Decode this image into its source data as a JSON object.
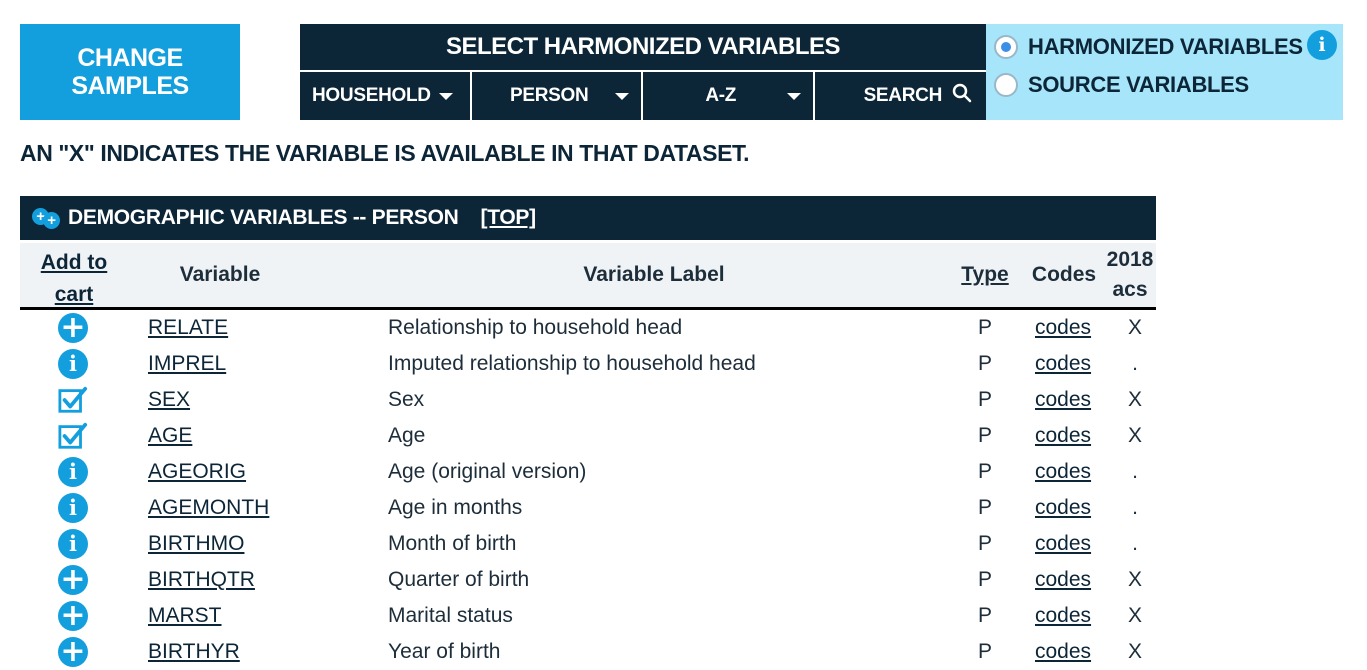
{
  "change_samples": {
    "line1": "CHANGE",
    "line2": "SAMPLES"
  },
  "select": {
    "title": "SELECT HARMONIZED VARIABLES",
    "tabs": [
      {
        "label": "HOUSEHOLD",
        "icon": "caret-down-icon"
      },
      {
        "label": "PERSON",
        "icon": "caret-down-icon"
      },
      {
        "label": "A-Z",
        "icon": "caret-down-icon"
      },
      {
        "label": "SEARCH",
        "icon": "search-icon"
      }
    ]
  },
  "mode": {
    "harmonized": "HARMONIZED VARIABLES",
    "source": "SOURCE VARIABLES",
    "selected": "harmonized",
    "info": "i"
  },
  "notice": "AN \"X\" INDICATES THE VARIABLE IS AVAILABLE IN THAT DATASET.",
  "group": {
    "title": "DEMOGRAPHIC VARIABLES -- PERSON",
    "top_link": "[TOP]"
  },
  "headers": {
    "add_line1": "Add to",
    "add_line2": "cart",
    "variable": "Variable",
    "label": "Variable Label",
    "type": "Type",
    "codes": "Codes",
    "sample_line1": "2018",
    "sample_line2": "acs"
  },
  "rows": [
    {
      "icon": "plus",
      "variable": "RELATE",
      "label": "Relationship to household head",
      "type": "P",
      "codes": "codes",
      "avail": "X"
    },
    {
      "icon": "info",
      "variable": "IMPREL",
      "label": "Imputed relationship to household head",
      "type": "P",
      "codes": "codes",
      "avail": "."
    },
    {
      "icon": "check",
      "variable": "SEX",
      "label": "Sex",
      "type": "P",
      "codes": "codes",
      "avail": "X"
    },
    {
      "icon": "check",
      "variable": "AGE",
      "label": "Age",
      "type": "P",
      "codes": "codes",
      "avail": "X"
    },
    {
      "icon": "info",
      "variable": "AGEORIG",
      "label": "Age (original version)",
      "type": "P",
      "codes": "codes",
      "avail": "."
    },
    {
      "icon": "info",
      "variable": "AGEMONTH",
      "label": "Age in months",
      "type": "P",
      "codes": "codes",
      "avail": "."
    },
    {
      "icon": "info",
      "variable": "BIRTHMO",
      "label": "Month of birth",
      "type": "P",
      "codes": "codes",
      "avail": "."
    },
    {
      "icon": "plus",
      "variable": "BIRTHQTR",
      "label": "Quarter of birth",
      "type": "P",
      "codes": "codes",
      "avail": "X"
    },
    {
      "icon": "plus",
      "variable": "MARST",
      "label": "Marital status",
      "type": "P",
      "codes": "codes",
      "avail": "X"
    },
    {
      "icon": "plus",
      "variable": "BIRTHYR",
      "label": "Year of birth",
      "type": "P",
      "codes": "codes",
      "avail": "X"
    }
  ],
  "colors": {
    "navy": "#0c2537",
    "blue": "#139fdd",
    "light_blue": "#a7e5fa"
  }
}
